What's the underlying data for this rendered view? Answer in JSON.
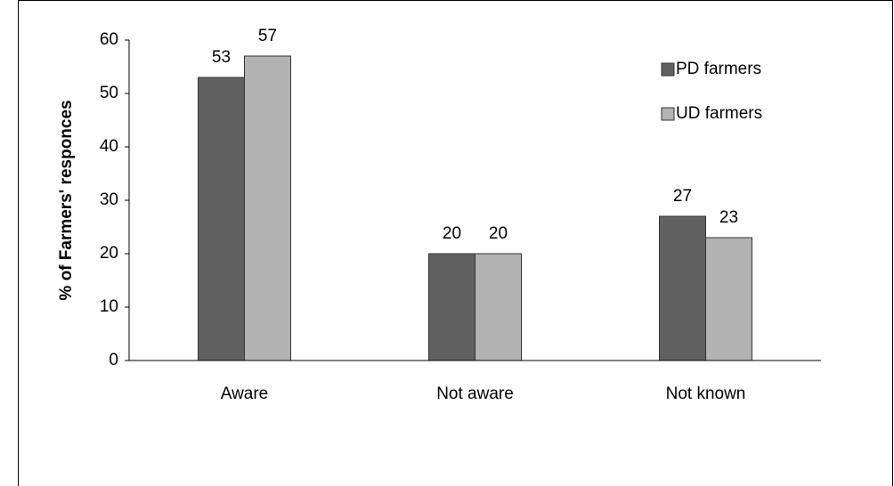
{
  "chart_data": {
    "type": "bar",
    "y_label": "% of Farmers' responces",
    "categories": [
      "Aware",
      "Not aware",
      "Not known"
    ],
    "series": [
      {
        "name": "PD farmers",
        "color": "#616161",
        "values": [
          53,
          20,
          27
        ]
      },
      {
        "name": "UD farmers",
        "color": "#b3b3b3",
        "values": [
          57,
          20,
          23
        ]
      }
    ],
    "ylim": [
      0,
      60
    ],
    "yticks": [
      0,
      10,
      20,
      30,
      40,
      50,
      60
    ],
    "grid": false,
    "legend": "top-right",
    "data_labels": true
  }
}
